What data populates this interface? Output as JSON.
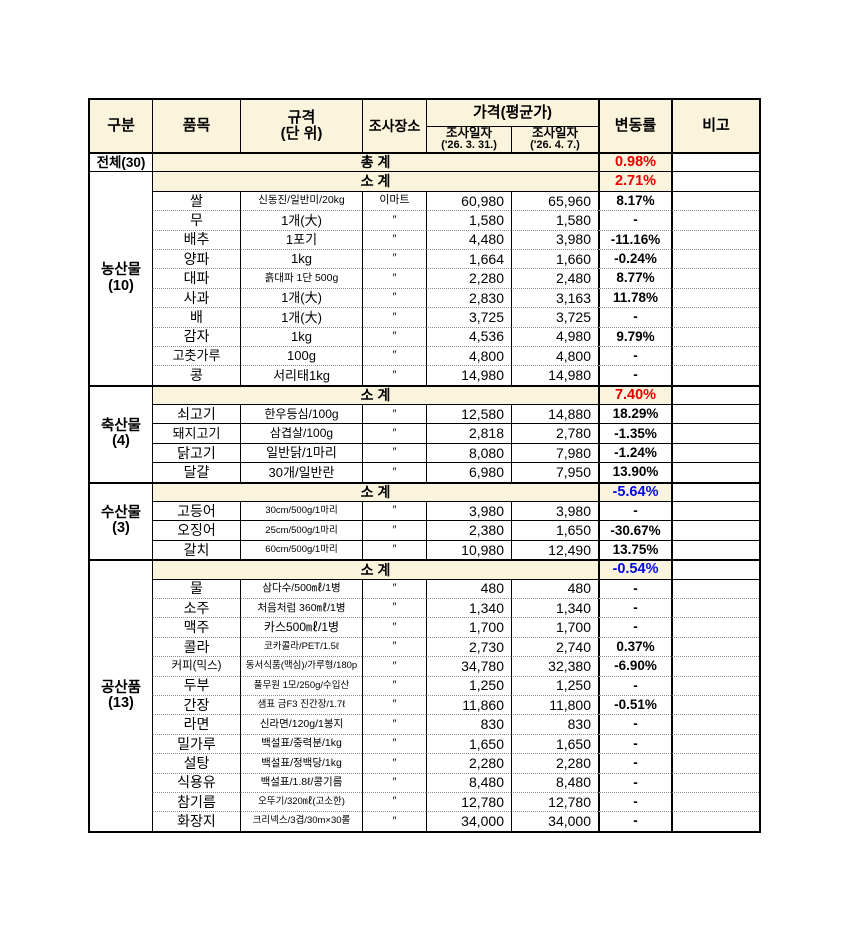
{
  "colors": {
    "cream": "#fbf4dd",
    "red": "#e60000",
    "blue": "#0009e6",
    "border": "#000000",
    "dotted_border": "#8d8d8d"
  },
  "table": {
    "header": {
      "col_category": "구분",
      "col_item": "품목",
      "col_spec_line1": "규격",
      "col_spec_line2": "(단 위)",
      "col_place": "조사장소",
      "col_price_group": "가격(평균가)",
      "col_date1_line1": "조사일자",
      "col_date1_line2": "('26. 3. 31.)",
      "col_date2_line1": "조사일자",
      "col_date2_line2": "('26. 4. 7.)",
      "col_change": "변동률",
      "col_note": "비고"
    },
    "total_row": {
      "category": "전체(30)",
      "label": "총  계",
      "change": "0.98%",
      "change_color": "red"
    },
    "subtotal_label": "소  계",
    "ditto": "″",
    "sections": [
      {
        "category": "농산물",
        "count": "(10)",
        "divider": "dotted",
        "subtotal_change": "2.71%",
        "subtotal_color": "red",
        "items": [
          {
            "name": "쌀",
            "spec": "신동진/일반미/20kg",
            "place": "이마트",
            "price1": "60,980",
            "price2": "65,960",
            "change": "8.17%"
          },
          {
            "name": "무",
            "spec": "1개(大)",
            "place": "″",
            "price1": "1,580",
            "price2": "1,580",
            "change": "-"
          },
          {
            "name": "배추",
            "spec": "1포기",
            "place": "″",
            "price1": "4,480",
            "price2": "3,980",
            "change": "-11.16%"
          },
          {
            "name": "양파",
            "spec": "1kg",
            "place": "″",
            "price1": "1,664",
            "price2": "1,660",
            "change": "-0.24%"
          },
          {
            "name": "대파",
            "spec": "흙대파 1단 500g",
            "place": "″",
            "price1": "2,280",
            "price2": "2,480",
            "change": "8.77%"
          },
          {
            "name": "사과",
            "spec": "1개(大)",
            "place": "″",
            "price1": "2,830",
            "price2": "3,163",
            "change": "11.78%"
          },
          {
            "name": "배",
            "spec": "1개(大)",
            "place": "″",
            "price1": "3,725",
            "price2": "3,725",
            "change": "-"
          },
          {
            "name": "감자",
            "spec": "1kg",
            "place": "″",
            "price1": "4,536",
            "price2": "4,980",
            "change": "9.79%"
          },
          {
            "name": "고춧가루",
            "spec": "100g",
            "place": "″",
            "price1": "4,800",
            "price2": "4,800",
            "change": "-"
          },
          {
            "name": "콩",
            "spec": "서리태1kg",
            "place": "″",
            "price1": "14,980",
            "price2": "14,980",
            "change": "-"
          }
        ]
      },
      {
        "category": "축산물",
        "count": "(4)",
        "divider": "solid",
        "subtotal_change": "7.40%",
        "subtotal_color": "red",
        "items": [
          {
            "name": "쇠고기",
            "spec": "한우등심/100g",
            "place": "″",
            "price1": "12,580",
            "price2": "14,880",
            "change": "18.29%"
          },
          {
            "name": "돼지고기",
            "spec": "삼겹살/100g",
            "place": "″",
            "price1": "2,818",
            "price2": "2,780",
            "change": "-1.35%"
          },
          {
            "name": "닭고기",
            "spec": "일반닭/1마리",
            "place": "″",
            "price1": "8,080",
            "price2": "7,980",
            "change": "-1.24%"
          },
          {
            "name": "달걀",
            "spec": "30개/일반란",
            "place": "″",
            "price1": "6,980",
            "price2": "7,950",
            "change": "13.90%"
          }
        ]
      },
      {
        "category": "수산물",
        "count": "(3)",
        "divider": "solid",
        "subtotal_change": "-5.64%",
        "subtotal_color": "blue",
        "items": [
          {
            "name": "고등어",
            "spec": "30cm/500g/1마리",
            "place": "″",
            "price1": "3,980",
            "price2": "3,980",
            "change": "-"
          },
          {
            "name": "오징어",
            "spec": "25cm/500g/1마리",
            "place": "″",
            "price1": "2,380",
            "price2": "1,650",
            "change": "-30.67%"
          },
          {
            "name": "갈치",
            "spec": "60cm/500g/1마리",
            "place": "″",
            "price1": "10,980",
            "price2": "12,490",
            "change": "13.75%"
          }
        ]
      },
      {
        "category": "공산품",
        "count": "(13)",
        "divider": "dotted",
        "subtotal_change": "-0.54%",
        "subtotal_color": "blue",
        "items": [
          {
            "name": "물",
            "spec": "삼다수/500㎖/1병",
            "place": "″",
            "price1": "480",
            "price2": "480",
            "change": "-"
          },
          {
            "name": "소주",
            "spec": "처음처럼 360㎖/1병",
            "place": "″",
            "price1": "1,340",
            "price2": "1,340",
            "change": "-"
          },
          {
            "name": "맥주",
            "spec": "카스500㎖/1병",
            "place": "″",
            "price1": "1,700",
            "price2": "1,700",
            "change": "-"
          },
          {
            "name": "콜라",
            "spec": "코카콜라/PET/1.5ℓ",
            "place": "″",
            "price1": "2,730",
            "price2": "2,740",
            "change": "0.37%"
          },
          {
            "name": "커피(믹스)",
            "spec": "동서식품(맥심)/가루형/180p",
            "place": "″",
            "price1": "34,780",
            "price2": "32,380",
            "change": "-6.90%"
          },
          {
            "name": "두부",
            "spec": "풀무원 1모/250g/수입산",
            "place": "″",
            "price1": "1,250",
            "price2": "1,250",
            "change": "-"
          },
          {
            "name": "간장",
            "spec": "샘표 금F3 진간장/1.7ℓ",
            "place": "″",
            "price1": "11,860",
            "price2": "11,800",
            "change": "-0.51%"
          },
          {
            "name": "라면",
            "spec": "신라면/120g/1봉지",
            "place": "″",
            "price1": "830",
            "price2": "830",
            "change": "-"
          },
          {
            "name": "밀가루",
            "spec": "백설표/중력분/1kg",
            "place": "″",
            "price1": "1,650",
            "price2": "1,650",
            "change": "-"
          },
          {
            "name": "설탕",
            "spec": "백설표/정백당/1kg",
            "place": "″",
            "price1": "2,280",
            "price2": "2,280",
            "change": "-"
          },
          {
            "name": "식용유",
            "spec": "백설표/1.8ℓ/콩기름",
            "place": "″",
            "price1": "8,480",
            "price2": "8,480",
            "change": "-"
          },
          {
            "name": "참기름",
            "spec": "오뚜기/320㎖(고소한)",
            "place": "″",
            "price1": "12,780",
            "price2": "12,780",
            "change": "-"
          },
          {
            "name": "화장지",
            "spec": "크리넥스/3겹/30m×30롤",
            "place": "″",
            "price1": "34,000",
            "price2": "34,000",
            "change": "-"
          }
        ]
      }
    ]
  }
}
